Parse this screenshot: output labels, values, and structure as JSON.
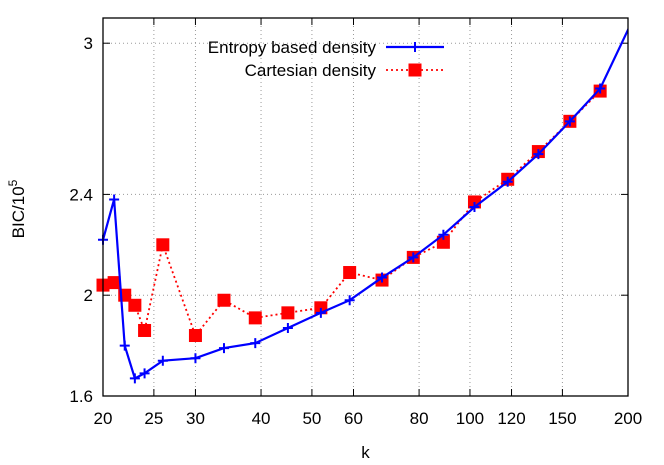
{
  "chart_data": {
    "type": "line",
    "xscale": "log",
    "xlim": [
      20,
      200
    ],
    "ylim": [
      1.6,
      3.1
    ],
    "xlabel": "k",
    "ylabel_base": "BIC/10",
    "ylabel_exp": "5",
    "xticks": [
      20,
      25,
      30,
      40,
      50,
      60,
      80,
      100,
      120,
      150,
      200
    ],
    "yticks": [
      1.6,
      2,
      2.4,
      3
    ],
    "ytick_labels": [
      "1.6",
      "2",
      "2.4",
      "3"
    ],
    "grid": true,
    "legend_position": "top-right",
    "series": [
      {
        "name": "Entropy based density",
        "color": "#0000ff",
        "line_style": "solid",
        "marker": "plus",
        "x": [
          20,
          21,
          22,
          23,
          24,
          26,
          30,
          34,
          39,
          45,
          52,
          59,
          68,
          78,
          89,
          102,
          118,
          135,
          155,
          177,
          205
        ],
        "y": [
          2.22,
          2.38,
          1.8,
          1.67,
          1.69,
          1.74,
          1.75,
          1.79,
          1.81,
          1.87,
          1.93,
          1.98,
          2.07,
          2.15,
          2.24,
          2.35,
          2.45,
          2.56,
          2.69,
          2.82,
          3.1
        ]
      },
      {
        "name": "Cartesian density",
        "color": "#ff0000",
        "line_style": "dotted",
        "marker": "square",
        "x": [
          20,
          21,
          22,
          23,
          24,
          26,
          30,
          34,
          39,
          45,
          52,
          59,
          68,
          78,
          89,
          102,
          118,
          135,
          155,
          177
        ],
        "y": [
          2.04,
          2.05,
          2.0,
          1.96,
          1.86,
          2.2,
          1.84,
          1.98,
          1.91,
          1.93,
          1.95,
          2.09,
          2.06,
          2.15,
          2.21,
          2.37,
          2.46,
          2.57,
          2.69,
          2.81
        ]
      }
    ]
  }
}
